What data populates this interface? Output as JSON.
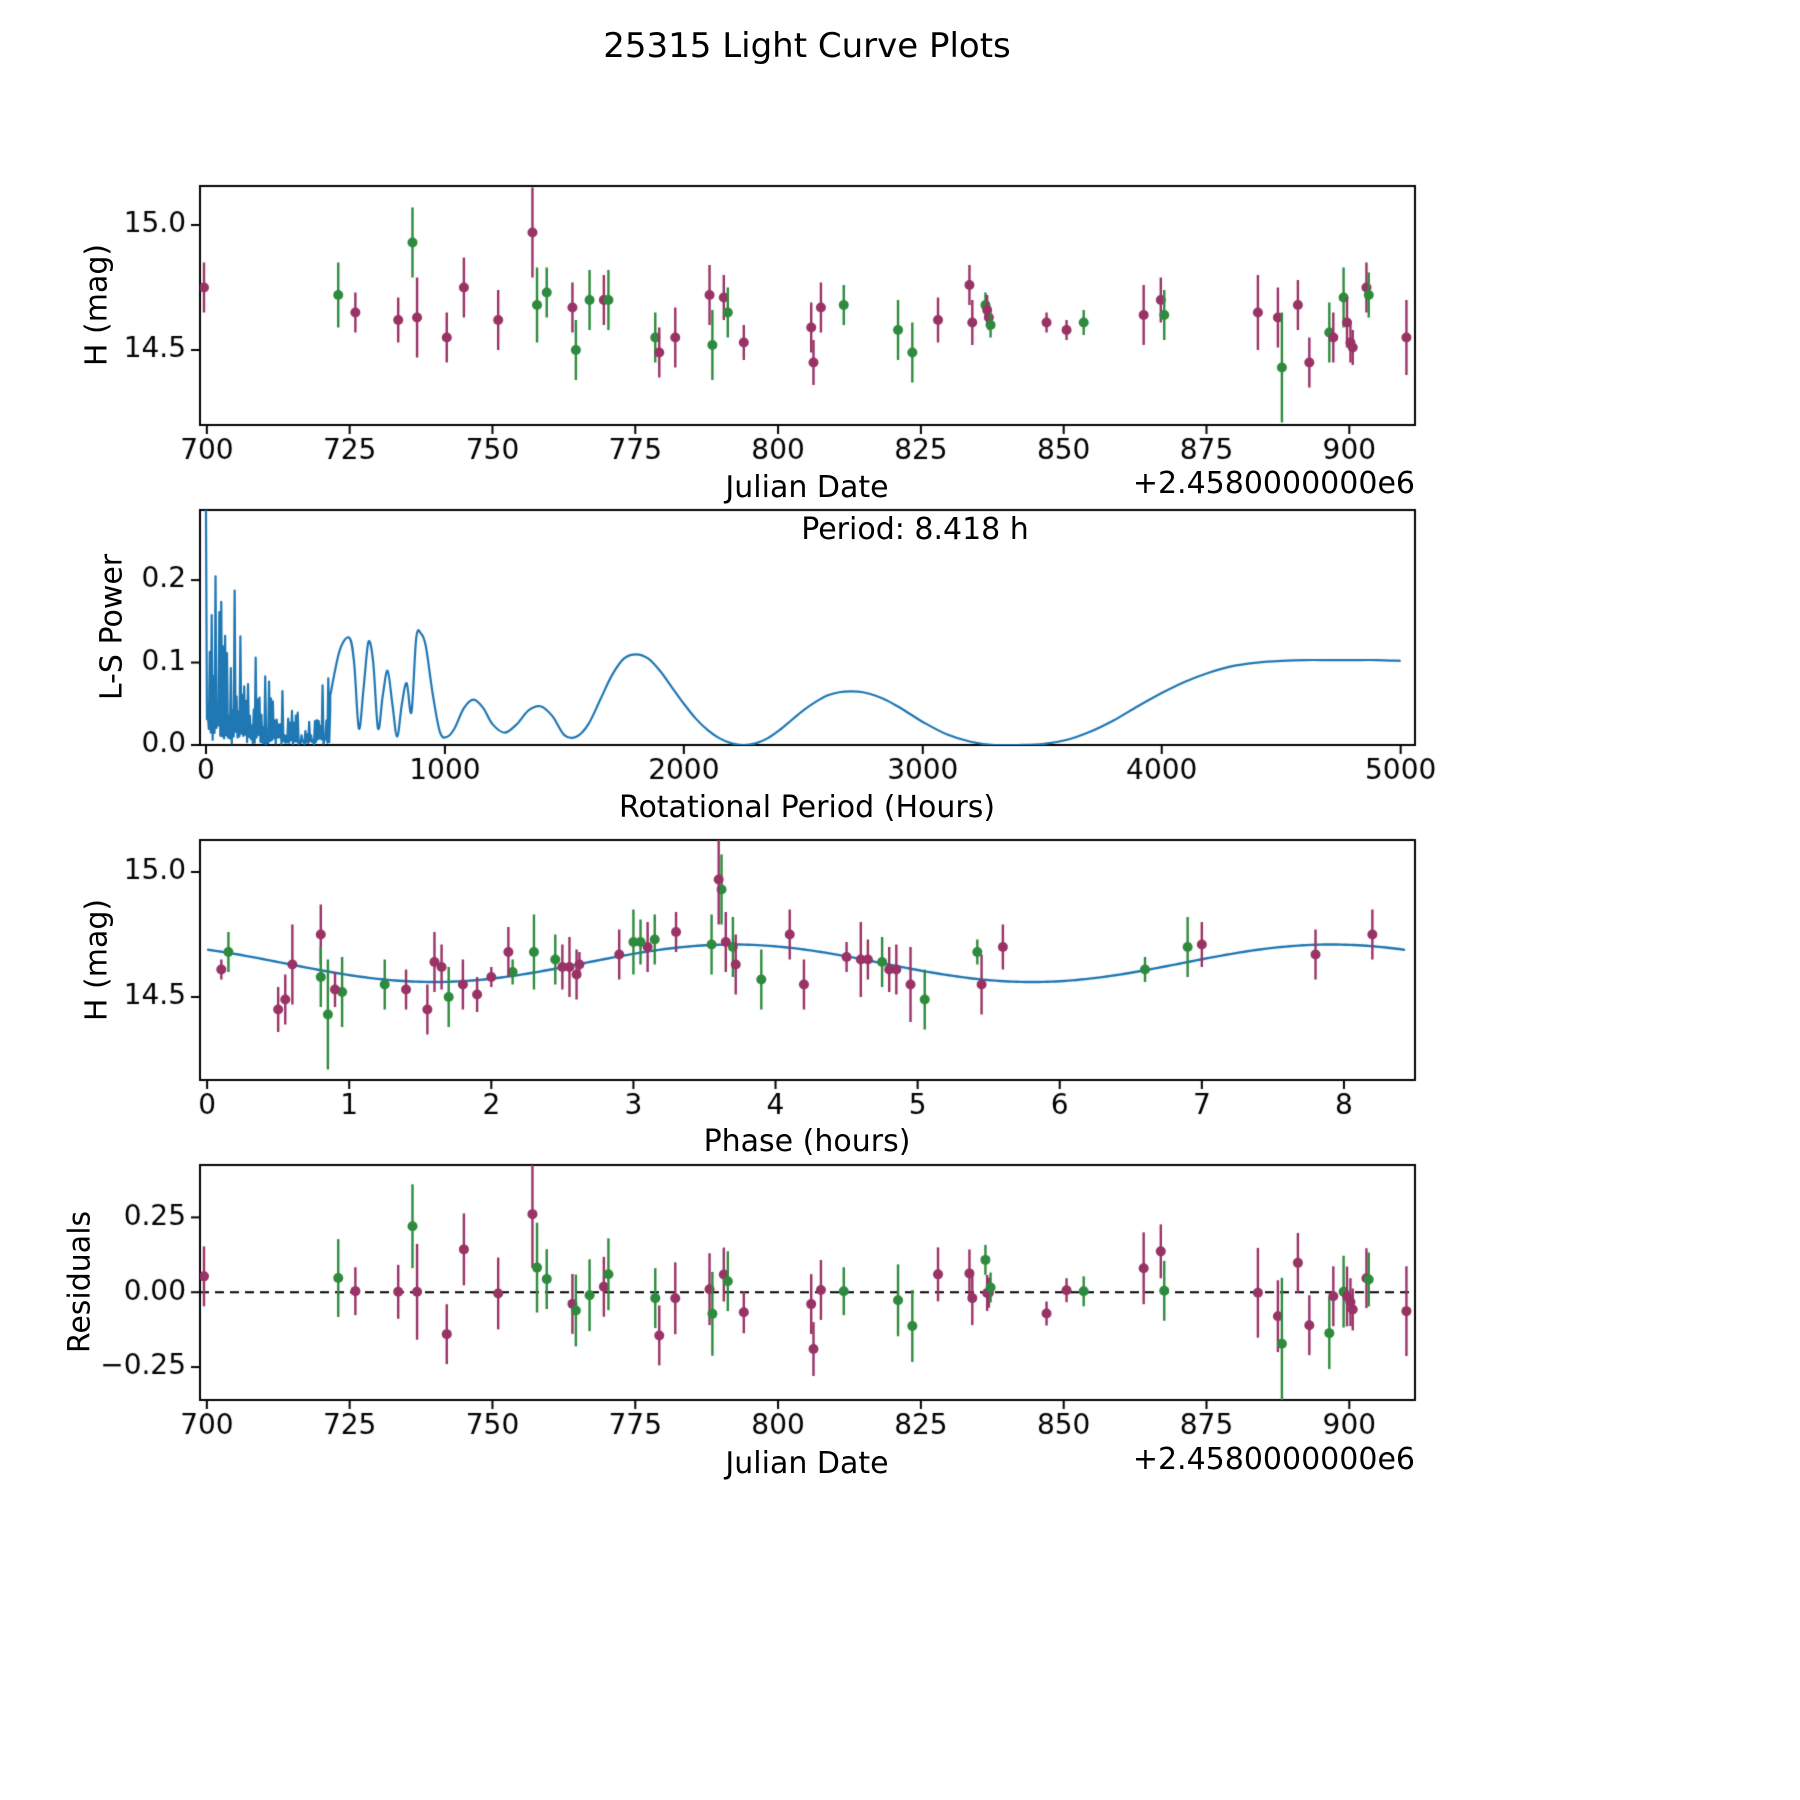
{
  "figure": {
    "title": "25315 Light Curve Plots"
  },
  "colors": {
    "purple": "#993366",
    "green": "#2e8b3e",
    "line_blue": "#1f77b4",
    "axis": "#000000",
    "background": "#ffffff"
  },
  "chart_data": [
    {
      "id": "light_curve",
      "type": "scatter",
      "xlabel": "Julian Date",
      "ylabel": "H (mag)",
      "x_offset_text": "+2.4580000000e6",
      "xlim": [
        698.8,
        911.5
      ],
      "ylim": [
        14.2,
        15.156
      ],
      "xtick_vals": [
        700,
        725,
        750,
        775,
        800,
        825,
        850,
        875,
        900
      ],
      "xtick_labels": [
        "700",
        "725",
        "750",
        "775",
        "800",
        "825",
        "850",
        "875",
        "900"
      ],
      "ytick_vals": [
        14.5,
        15.0
      ],
      "ytick_labels": [
        "14.5",
        "15.0"
      ],
      "color_map": {
        "p": "purple",
        "g": "green"
      },
      "points_format": [
        "jd_minus_2458000",
        "H_mag",
        "err_mag",
        "phase_hours",
        "color_key"
      ],
      "points": [
        [
          699.5,
          14.75,
          0.1,
          4.1,
          "p"
        ],
        [
          723.0,
          14.72,
          0.13,
          3.0,
          "g"
        ],
        [
          726.0,
          14.65,
          0.08,
          4.65,
          "p"
        ],
        [
          733.5,
          14.62,
          0.09,
          2.5,
          "p"
        ],
        [
          736.0,
          14.93,
          0.14,
          3.62,
          "g"
        ],
        [
          736.8,
          14.63,
          0.16,
          0.6,
          "p"
        ],
        [
          742.0,
          14.55,
          0.1,
          4.2,
          "p"
        ],
        [
          745.0,
          14.75,
          0.12,
          0.8,
          "p"
        ],
        [
          751.0,
          14.62,
          0.12,
          2.55,
          "p"
        ],
        [
          757.0,
          14.97,
          0.18,
          3.6,
          "p"
        ],
        [
          757.8,
          14.68,
          0.15,
          2.3,
          "g"
        ],
        [
          759.5,
          14.73,
          0.1,
          3.15,
          "g"
        ],
        [
          764.0,
          14.67,
          0.1,
          7.8,
          "p"
        ],
        [
          764.6,
          14.5,
          0.12,
          1.7,
          "g"
        ],
        [
          767.0,
          14.7,
          0.12,
          3.7,
          "g"
        ],
        [
          769.5,
          14.7,
          0.1,
          3.1,
          "p"
        ],
        [
          770.3,
          14.7,
          0.12,
          6.9,
          "g"
        ],
        [
          778.5,
          14.55,
          0.1,
          1.25,
          "g"
        ],
        [
          779.2,
          14.49,
          0.1,
          0.55,
          "p"
        ],
        [
          782.0,
          14.55,
          0.12,
          5.45,
          "p"
        ],
        [
          788.0,
          14.72,
          0.12,
          3.65,
          "p"
        ],
        [
          788.5,
          14.52,
          0.14,
          0.95,
          "g"
        ],
        [
          790.5,
          14.71,
          0.09,
          7.0,
          "p"
        ],
        [
          791.2,
          14.65,
          0.1,
          2.45,
          "g"
        ],
        [
          794.0,
          14.53,
          0.07,
          0.9,
          "p"
        ],
        [
          805.8,
          14.59,
          0.1,
          2.6,
          "p"
        ],
        [
          806.2,
          14.45,
          0.09,
          0.5,
          "p"
        ],
        [
          807.5,
          14.67,
          0.1,
          2.9,
          "p"
        ],
        [
          811.5,
          14.68,
          0.08,
          0.15,
          "g"
        ],
        [
          821.0,
          14.58,
          0.12,
          0.8,
          "g"
        ],
        [
          823.5,
          14.49,
          0.12,
          5.05,
          "g"
        ],
        [
          828.0,
          14.62,
          0.09,
          1.65,
          "p"
        ],
        [
          833.5,
          14.76,
          0.08,
          3.3,
          "p"
        ],
        [
          834.0,
          14.61,
          0.09,
          4.8,
          "p"
        ],
        [
          836.3,
          14.68,
          0.05,
          5.42,
          "g"
        ],
        [
          836.6,
          14.66,
          0.06,
          4.5,
          "p"
        ],
        [
          836.9,
          14.63,
          0.05,
          2.62,
          "p"
        ],
        [
          837.2,
          14.6,
          0.05,
          2.15,
          "g"
        ],
        [
          847.0,
          14.61,
          0.04,
          0.1,
          "p"
        ],
        [
          850.5,
          14.58,
          0.04,
          2.0,
          "p"
        ],
        [
          853.5,
          14.61,
          0.05,
          6.6,
          "g"
        ],
        [
          864.0,
          14.64,
          0.12,
          1.6,
          "p"
        ],
        [
          867.0,
          14.7,
          0.09,
          5.6,
          "p"
        ],
        [
          867.6,
          14.64,
          0.1,
          4.75,
          "g"
        ],
        [
          884.0,
          14.65,
          0.15,
          4.6,
          "p"
        ],
        [
          887.5,
          14.63,
          0.12,
          3.72,
          "p"
        ],
        [
          888.2,
          14.43,
          0.22,
          0.85,
          "g"
        ],
        [
          891.0,
          14.68,
          0.1,
          2.12,
          "p"
        ],
        [
          893.0,
          14.45,
          0.1,
          1.55,
          "p"
        ],
        [
          896.5,
          14.57,
          0.12,
          3.9,
          "g"
        ],
        [
          897.2,
          14.55,
          0.1,
          1.8,
          "p"
        ],
        [
          899.0,
          14.71,
          0.12,
          3.55,
          "g"
        ],
        [
          899.6,
          14.61,
          0.1,
          4.85,
          "p"
        ],
        [
          900.2,
          14.53,
          0.08,
          1.4,
          "p"
        ],
        [
          900.6,
          14.51,
          0.07,
          1.9,
          "p"
        ],
        [
          903.0,
          14.75,
          0.1,
          8.2,
          "p"
        ],
        [
          903.4,
          14.72,
          0.09,
          3.05,
          "g"
        ],
        [
          910.0,
          14.55,
          0.15,
          4.95,
          "p"
        ]
      ]
    },
    {
      "id": "periodogram",
      "type": "line",
      "xlabel": "Rotational Period (Hours)",
      "ylabel": "L-S Power",
      "annotation": "Period: 8.418 h",
      "best_period_hours": 8.418,
      "xlim": [
        -25,
        5060
      ],
      "ylim": [
        0,
        0.285
      ],
      "xtick_vals": [
        0,
        1000,
        2000,
        3000,
        4000,
        5000
      ],
      "xtick_labels": [
        "0",
        "1000",
        "2000",
        "3000",
        "4000",
        "5000"
      ],
      "ytick_vals": [
        0.0,
        0.1,
        0.2
      ],
      "ytick_labels": [
        "0.0",
        "0.1",
        "0.2"
      ],
      "noise_region": {
        "x_max": 520,
        "envelope": [
          [
            0,
            0.285
          ],
          [
            15,
            0.27
          ],
          [
            30,
            0.22
          ],
          [
            60,
            0.19
          ],
          [
            90,
            0.16
          ],
          [
            120,
            0.19
          ],
          [
            150,
            0.12
          ],
          [
            180,
            0.1
          ],
          [
            210,
            0.13
          ],
          [
            240,
            0.09
          ],
          [
            270,
            0.13
          ],
          [
            300,
            0.12
          ],
          [
            330,
            0.07
          ],
          [
            360,
            0.05
          ],
          [
            390,
            0.04
          ],
          [
            420,
            0.03
          ],
          [
            450,
            0.05
          ],
          [
            480,
            0.07
          ],
          [
            520,
            0.09
          ]
        ]
      },
      "curve_points": [
        [
          520,
          0.06
        ],
        [
          560,
          0.115
        ],
        [
          600,
          0.13
        ],
        [
          620,
          0.1
        ],
        [
          640,
          0.02
        ],
        [
          660,
          0.07
        ],
        [
          680,
          0.125
        ],
        [
          700,
          0.1
        ],
        [
          720,
          0.02
        ],
        [
          740,
          0.06
        ],
        [
          760,
          0.09
        ],
        [
          780,
          0.05
        ],
        [
          800,
          0.01
        ],
        [
          820,
          0.05
        ],
        [
          840,
          0.075
        ],
        [
          860,
          0.04
        ],
        [
          880,
          0.13
        ],
        [
          900,
          0.135
        ],
        [
          920,
          0.12
        ],
        [
          950,
          0.06
        ],
        [
          980,
          0.015
        ],
        [
          1010,
          0.01
        ],
        [
          1040,
          0.02
        ],
        [
          1080,
          0.045
        ],
        [
          1120,
          0.055
        ],
        [
          1160,
          0.045
        ],
        [
          1200,
          0.025
        ],
        [
          1250,
          0.015
        ],
        [
          1300,
          0.025
        ],
        [
          1350,
          0.042
        ],
        [
          1400,
          0.047
        ],
        [
          1450,
          0.035
        ],
        [
          1500,
          0.012
        ],
        [
          1550,
          0.01
        ],
        [
          1600,
          0.025
        ],
        [
          1650,
          0.055
        ],
        [
          1700,
          0.085
        ],
        [
          1750,
          0.105
        ],
        [
          1800,
          0.11
        ],
        [
          1850,
          0.105
        ],
        [
          1900,
          0.09
        ],
        [
          1950,
          0.07
        ],
        [
          2000,
          0.05
        ],
        [
          2050,
          0.032
        ],
        [
          2100,
          0.018
        ],
        [
          2150,
          0.008
        ],
        [
          2200,
          0.002
        ],
        [
          2250,
          0.0
        ],
        [
          2300,
          0.002
        ],
        [
          2350,
          0.008
        ],
        [
          2400,
          0.018
        ],
        [
          2450,
          0.03
        ],
        [
          2500,
          0.042
        ],
        [
          2550,
          0.052
        ],
        [
          2600,
          0.06
        ],
        [
          2650,
          0.064
        ],
        [
          2700,
          0.065
        ],
        [
          2750,
          0.064
        ],
        [
          2800,
          0.06
        ],
        [
          2850,
          0.054
        ],
        [
          2900,
          0.046
        ],
        [
          2950,
          0.037
        ],
        [
          3000,
          0.028
        ],
        [
          3100,
          0.013
        ],
        [
          3200,
          0.004
        ],
        [
          3300,
          0.0
        ],
        [
          3400,
          0.0
        ],
        [
          3500,
          0.001
        ],
        [
          3600,
          0.006
        ],
        [
          3700,
          0.016
        ],
        [
          3800,
          0.03
        ],
        [
          3900,
          0.047
        ],
        [
          4000,
          0.063
        ],
        [
          4100,
          0.077
        ],
        [
          4200,
          0.088
        ],
        [
          4300,
          0.096
        ],
        [
          4400,
          0.1
        ],
        [
          4500,
          0.102
        ],
        [
          4600,
          0.103
        ],
        [
          4700,
          0.103
        ],
        [
          4800,
          0.103
        ],
        [
          4900,
          0.103
        ],
        [
          5000,
          0.102
        ]
      ]
    },
    {
      "id": "phase_folded",
      "type": "scatter_with_model_line",
      "xlabel": "Phase (hours)",
      "ylabel": "H (mag)",
      "xlim": [
        -0.05,
        8.5
      ],
      "ylim": [
        14.168,
        15.128
      ],
      "xtick_vals": [
        0,
        1,
        2,
        3,
        4,
        5,
        6,
        7,
        8
      ],
      "xtick_labels": [
        "0",
        "1",
        "2",
        "3",
        "4",
        "5",
        "6",
        "7",
        "8"
      ],
      "ytick_vals": [
        14.5,
        15.0
      ],
      "ytick_labels": [
        "14.5",
        "15.0"
      ],
      "model": {
        "mean": 14.635,
        "amplitude": 0.075,
        "period_hours": 8.418,
        "harmonic_period_hours": 4.209,
        "phase_of_max": 3.7
      },
      "points_source": "light_curve (phase_hours, H_mag, err_mag)"
    },
    {
      "id": "residuals",
      "type": "scatter",
      "xlabel": "Julian Date",
      "ylabel": "Residuals",
      "x_offset_text": "+2.4580000000e6",
      "xlim": [
        698.8,
        911.5
      ],
      "ylim": [
        -0.36,
        0.425
      ],
      "xtick_vals": [
        700,
        725,
        750,
        775,
        800,
        825,
        850,
        875,
        900
      ],
      "xtick_labels": [
        "700",
        "725",
        "750",
        "775",
        "800",
        "825",
        "850",
        "875",
        "900"
      ],
      "ytick_vals": [
        -0.25,
        0.0,
        0.25
      ],
      "ytick_labels": [
        "−0.25",
        "0.00",
        "0.25"
      ],
      "zero_line": "dashed",
      "points_source": "light_curve: residual = H_mag - model(phase_hours)"
    }
  ]
}
